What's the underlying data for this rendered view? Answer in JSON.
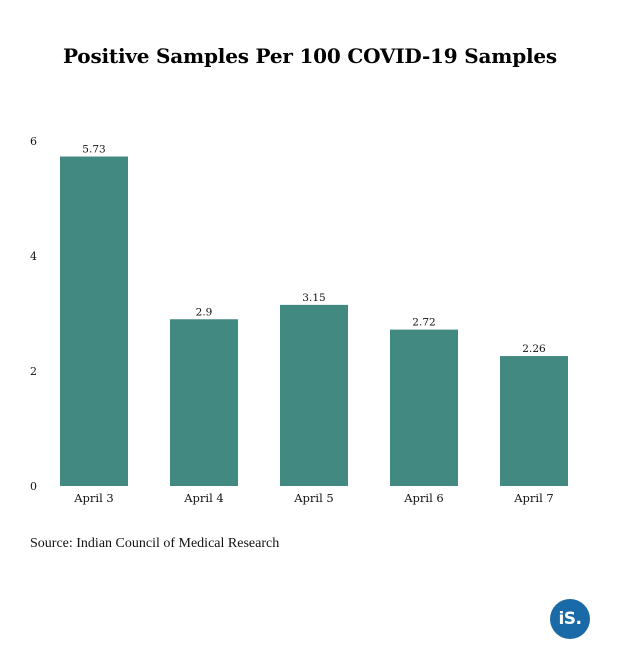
{
  "colors": {
    "bar": "#428982",
    "logo": "#1b6aa8"
  },
  "logo": {
    "text": "iS."
  },
  "source": "Source: Indian Council of Medical Research",
  "chart_data": {
    "type": "bar",
    "title": "Positive Samples Per 100 COVID-19 Samples",
    "xlabel": "",
    "ylabel": "",
    "categories": [
      "April 3",
      "April 4",
      "April 5",
      "April 6",
      "April 7"
    ],
    "values": [
      5.73,
      2.9,
      3.15,
      2.72,
      2.26
    ],
    "data_labels": [
      "5.73",
      "2.9",
      "3.15",
      "2.72",
      "2.26"
    ],
    "yticks": [
      "0",
      "2",
      "4",
      "6"
    ],
    "ylim": [
      0,
      6
    ],
    "grid": false,
    "legend": "none"
  }
}
